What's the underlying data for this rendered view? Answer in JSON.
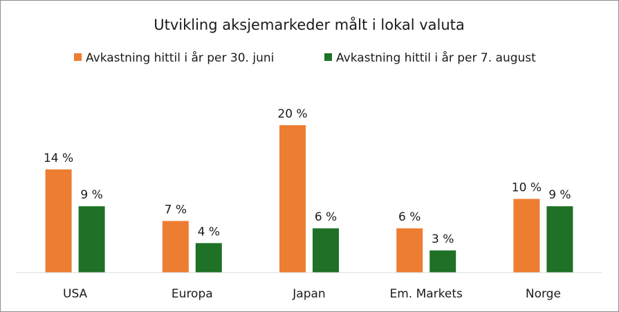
{
  "chart_data": {
    "type": "bar",
    "title": "Utvikling aksjemarkeder målt i lokal valuta",
    "categories": [
      "USA",
      "Europa",
      "Japan",
      "Em. Markets",
      "Norge"
    ],
    "series": [
      {
        "name": "Avkastning hittil i år per 30. juni",
        "values": [
          14,
          7,
          20,
          6,
          10
        ],
        "color": "#ed7d31"
      },
      {
        "name": "Avkastning hittil i år per 7. august",
        "values": [
          9,
          4,
          6,
          3,
          9
        ],
        "color": "#1e7126"
      }
    ],
    "value_suffix": " %",
    "ylim": [
      0,
      20
    ],
    "grid": false,
    "legend_position": "top",
    "axis_color": "#d9d9d9"
  }
}
